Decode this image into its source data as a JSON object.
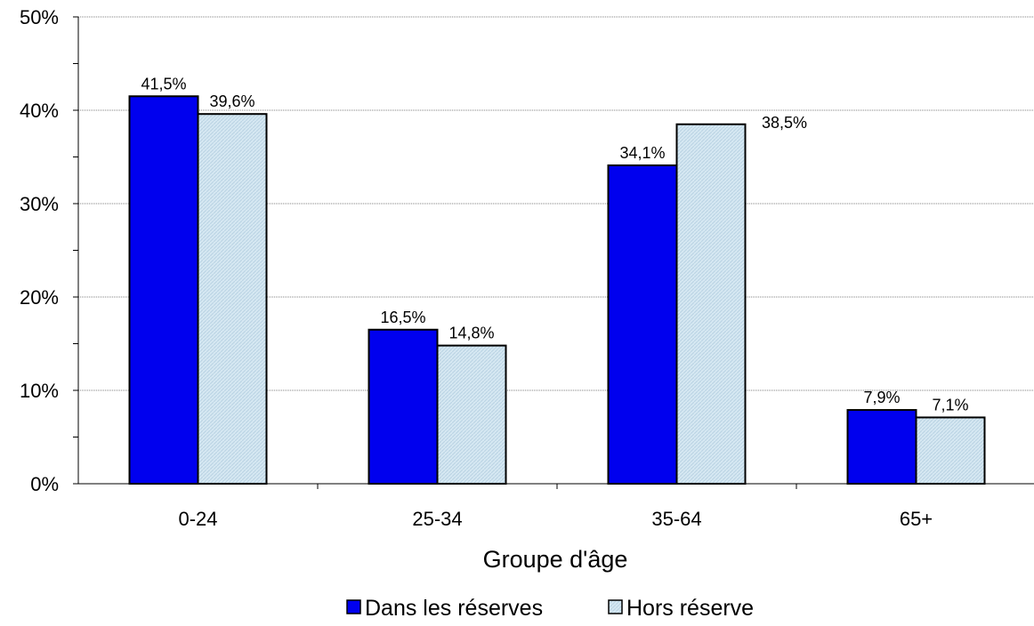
{
  "chart_data": {
    "type": "bar",
    "title": "",
    "xlabel": "Groupe d'âge",
    "ylabel": "",
    "categories": [
      "0-24",
      "25-34",
      "35-64",
      "65+"
    ],
    "series": [
      {
        "name": "Dans les réserves",
        "values": [
          41.5,
          16.5,
          34.1,
          7.9
        ],
        "labels": [
          "41,5%",
          "16,5%",
          "34,1%",
          "7,9%"
        ],
        "color": "#0000ee"
      },
      {
        "name": "Hors réserve",
        "values": [
          39.6,
          14.8,
          38.5,
          7.1
        ],
        "labels": [
          "39,6%",
          "14,8%",
          "38,5%",
          "7,1%"
        ],
        "color": "#cfe3ef"
      }
    ],
    "ylim": [
      0,
      50
    ],
    "yticks": [
      0,
      10,
      20,
      30,
      40,
      50
    ],
    "ytick_labels": [
      "0%",
      "10%",
      "20%",
      "30%",
      "40%",
      "50%"
    ],
    "grid": true,
    "legend_position": "bottom"
  }
}
